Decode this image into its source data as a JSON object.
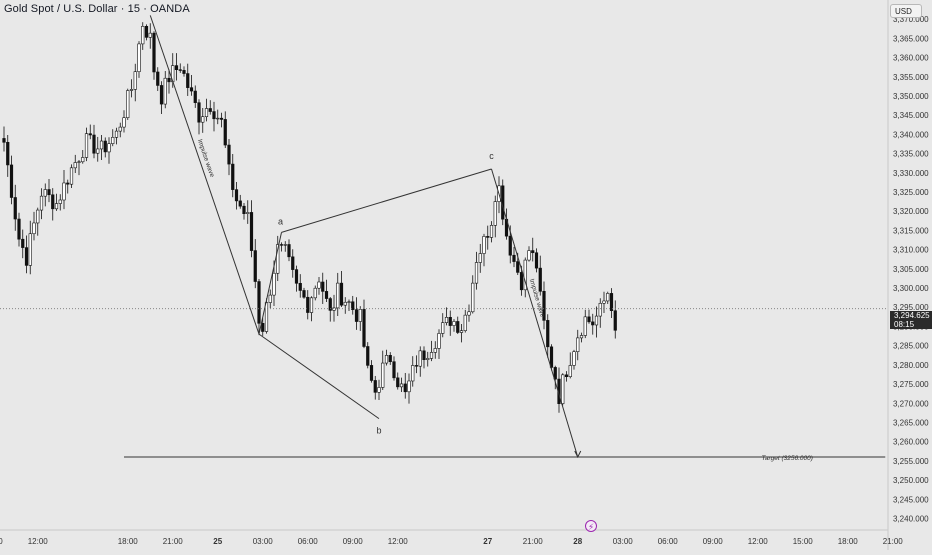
{
  "header": {
    "symbol_title": "Gold Spot / U.S. Dollar · 15 · OANDA",
    "currency_label": "USD"
  },
  "last_price": {
    "value": "3,294.625",
    "countdown": "08:15"
  },
  "events": {
    "bolt_icon": "⚡"
  },
  "colors": {
    "background": "#e8e8e8",
    "candle": "#111111",
    "annotation": "#333333"
  },
  "chart_data": {
    "type": "candlestick",
    "ylim": [
      3237,
      3375
    ],
    "y_ticks": [
      3240,
      3245,
      3250,
      3255,
      3260,
      3265,
      3270,
      3275,
      3280,
      3285,
      3290,
      3295,
      3300,
      3305,
      3310,
      3315,
      3320,
      3325,
      3330,
      3335,
      3340,
      3345,
      3350,
      3355,
      3360,
      3365,
      3370
    ],
    "y_tick_labels": [
      "3,240.000",
      "3,245.000",
      "3,250.000",
      "3,255.000",
      "3,260.000",
      "3,265.000",
      "3,270.000",
      "3,275.000",
      "3,280.000",
      "3,285.000",
      "3,290.000",
      "3,295.000",
      "3,300.000",
      "3,305.000",
      "3,310.000",
      "3,315.000",
      "3,320.000",
      "3,325.000",
      "3,330.000",
      "3,335.000",
      "3,340.000",
      "3,345.000",
      "3,350.000",
      "3,355.000",
      "3,360.000",
      "3,365.000",
      "3,370.000"
    ],
    "x_ticks": [
      {
        "label": "09:00",
        "bar": -3
      },
      {
        "label": "12:00",
        "bar": 9
      },
      {
        "label": "18:00",
        "bar": 33
      },
      {
        "label": "21:00",
        "bar": 45
      },
      {
        "label": "25",
        "bar": 57
      },
      {
        "label": "03:00",
        "bar": 69
      },
      {
        "label": "06:00",
        "bar": 81
      },
      {
        "label": "09:00",
        "bar": 93
      },
      {
        "label": "12:00",
        "bar": 105
      },
      {
        "label": "27",
        "bar": 129
      },
      {
        "label": "21:00",
        "bar": 141
      },
      {
        "label": "28",
        "bar": 153
      },
      {
        "label": "03:00",
        "bar": 165
      },
      {
        "label": "06:00",
        "bar": 177
      },
      {
        "label": "09:00",
        "bar": 189
      },
      {
        "label": "12:00",
        "bar": 201
      },
      {
        "label": "15:00",
        "bar": 213
      },
      {
        "label": "18:00",
        "bar": 225
      },
      {
        "label": "21:00",
        "bar": 237
      }
    ],
    "bold_x_labels": [
      "25",
      "27",
      "28"
    ],
    "anchors": [
      {
        "bar": 0,
        "price": 3338
      },
      {
        "bar": 4,
        "price": 3313
      },
      {
        "bar": 6,
        "price": 3308
      },
      {
        "bar": 10,
        "price": 3325
      },
      {
        "bar": 14,
        "price": 3322
      },
      {
        "bar": 18,
        "price": 3331
      },
      {
        "bar": 22,
        "price": 3338
      },
      {
        "bar": 26,
        "price": 3336
      },
      {
        "bar": 30,
        "price": 3340
      },
      {
        "bar": 34,
        "price": 3352
      },
      {
        "bar": 37,
        "price": 3369
      },
      {
        "bar": 39,
        "price": 3365
      },
      {
        "bar": 40,
        "price": 3357
      },
      {
        "bar": 42,
        "price": 3350
      },
      {
        "bar": 44,
        "price": 3355
      },
      {
        "bar": 47,
        "price": 3358
      },
      {
        "bar": 50,
        "price": 3350
      },
      {
        "bar": 52,
        "price": 3345
      },
      {
        "bar": 55,
        "price": 3348
      },
      {
        "bar": 58,
        "price": 3343
      },
      {
        "bar": 60,
        "price": 3330
      },
      {
        "bar": 62,
        "price": 3323
      },
      {
        "bar": 65,
        "price": 3318
      },
      {
        "bar": 67,
        "price": 3302
      },
      {
        "bar": 68,
        "price": 3292
      },
      {
        "bar": 69,
        "price": 3290
      },
      {
        "bar": 71,
        "price": 3300
      },
      {
        "bar": 73,
        "price": 3310
      },
      {
        "bar": 75,
        "price": 3309
      },
      {
        "bar": 78,
        "price": 3300
      },
      {
        "bar": 81,
        "price": 3296
      },
      {
        "bar": 84,
        "price": 3303
      },
      {
        "bar": 87,
        "price": 3293
      },
      {
        "bar": 89,
        "price": 3299
      },
      {
        "bar": 92,
        "price": 3296
      },
      {
        "bar": 95,
        "price": 3292
      },
      {
        "bar": 97,
        "price": 3278
      },
      {
        "bar": 99,
        "price": 3273
      },
      {
        "bar": 101,
        "price": 3279
      },
      {
        "bar": 103,
        "price": 3282
      },
      {
        "bar": 105,
        "price": 3276
      },
      {
        "bar": 107,
        "price": 3272
      },
      {
        "bar": 110,
        "price": 3281
      },
      {
        "bar": 113,
        "price": 3284
      },
      {
        "bar": 116,
        "price": 3288
      },
      {
        "bar": 119,
        "price": 3292
      },
      {
        "bar": 122,
        "price": 3290
      },
      {
        "bar": 124,
        "price": 3296
      },
      {
        "bar": 126,
        "price": 3308
      },
      {
        "bar": 128,
        "price": 3312
      },
      {
        "bar": 130,
        "price": 3318
      },
      {
        "bar": 131,
        "price": 3325
      },
      {
        "bar": 132,
        "price": 3326
      },
      {
        "bar": 134,
        "price": 3314
      },
      {
        "bar": 136,
        "price": 3307
      },
      {
        "bar": 138,
        "price": 3302
      },
      {
        "bar": 140,
        "price": 3310
      },
      {
        "bar": 142,
        "price": 3306
      },
      {
        "bar": 143,
        "price": 3297
      },
      {
        "bar": 145,
        "price": 3284
      },
      {
        "bar": 147,
        "price": 3277
      },
      {
        "bar": 148,
        "price": 3272
      },
      {
        "bar": 150,
        "price": 3279
      },
      {
        "bar": 153,
        "price": 3288
      },
      {
        "bar": 155,
        "price": 3292
      },
      {
        "bar": 157,
        "price": 3291
      },
      {
        "bar": 159,
        "price": 3294
      },
      {
        "bar": 161,
        "price": 3299
      },
      {
        "bar": 162,
        "price": 3296
      },
      {
        "bar": 163,
        "price": 3289
      }
    ],
    "annotations": {
      "impulse_label": "Impulse wave",
      "wave_a": "a",
      "wave_b": "b",
      "wave_c": "c",
      "target_label": "Target (3256.000)",
      "target_price": 3256,
      "points": {
        "top": {
          "bar": 39,
          "price": 3371
        },
        "low1": {
          "bar": 68,
          "price": 3288
        },
        "a": {
          "bar": 74,
          "price": 3314.5
        },
        "b": {
          "bar": 100,
          "price": 3266
        },
        "c": {
          "bar": 130,
          "price": 3331
        },
        "target": {
          "bar": 153,
          "price": 3256
        }
      }
    },
    "last_price": 3294.625
  }
}
